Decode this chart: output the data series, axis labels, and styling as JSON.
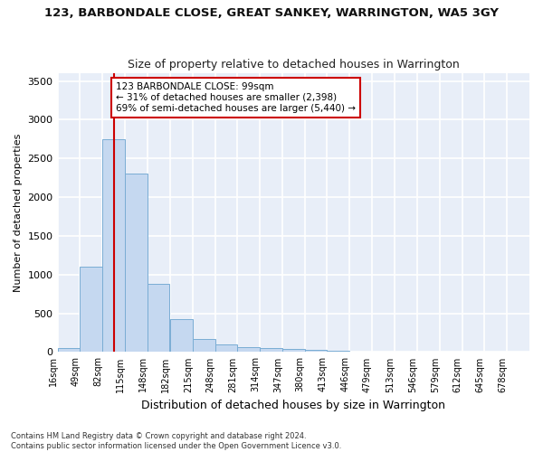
{
  "title": "123, BARBONDALE CLOSE, GREAT SANKEY, WARRINGTON, WA5 3GY",
  "subtitle": "Size of property relative to detached houses in Warrington",
  "xlabel": "Distribution of detached houses by size in Warrington",
  "ylabel": "Number of detached properties",
  "bar_color": "#c5d8f0",
  "bar_edge_color": "#7aadd4",
  "background_color": "#e8eef8",
  "grid_color": "#ffffff",
  "bin_labels": [
    "16sqm",
    "49sqm",
    "82sqm",
    "115sqm",
    "148sqm",
    "182sqm",
    "215sqm",
    "248sqm",
    "281sqm",
    "314sqm",
    "347sqm",
    "380sqm",
    "413sqm",
    "446sqm",
    "479sqm",
    "513sqm",
    "546sqm",
    "579sqm",
    "612sqm",
    "645sqm",
    "678sqm"
  ],
  "bar_values": [
    50,
    1100,
    2750,
    2300,
    880,
    430,
    170,
    100,
    65,
    55,
    35,
    30,
    20,
    8,
    5,
    3,
    2,
    1,
    0,
    0,
    0
  ],
  "bin_edges": [
    16,
    49,
    82,
    115,
    148,
    182,
    215,
    248,
    281,
    314,
    347,
    380,
    413,
    446,
    479,
    513,
    546,
    579,
    612,
    645,
    678
  ],
  "bin_width": 33,
  "property_size": 99,
  "red_line_color": "#cc0000",
  "annotation_text": "123 BARBONDALE CLOSE: 99sqm\n← 31% of detached houses are smaller (2,398)\n69% of semi-detached houses are larger (5,440) →",
  "annotation_box_color": "#ffffff",
  "annotation_border_color": "#cc0000",
  "ylim": [
    0,
    3600
  ],
  "yticks": [
    0,
    500,
    1000,
    1500,
    2000,
    2500,
    3000,
    3500
  ],
  "footnote1": "Contains HM Land Registry data © Crown copyright and database right 2024.",
  "footnote2": "Contains public sector information licensed under the Open Government Licence v3.0.",
  "fig_facecolor": "#ffffff"
}
